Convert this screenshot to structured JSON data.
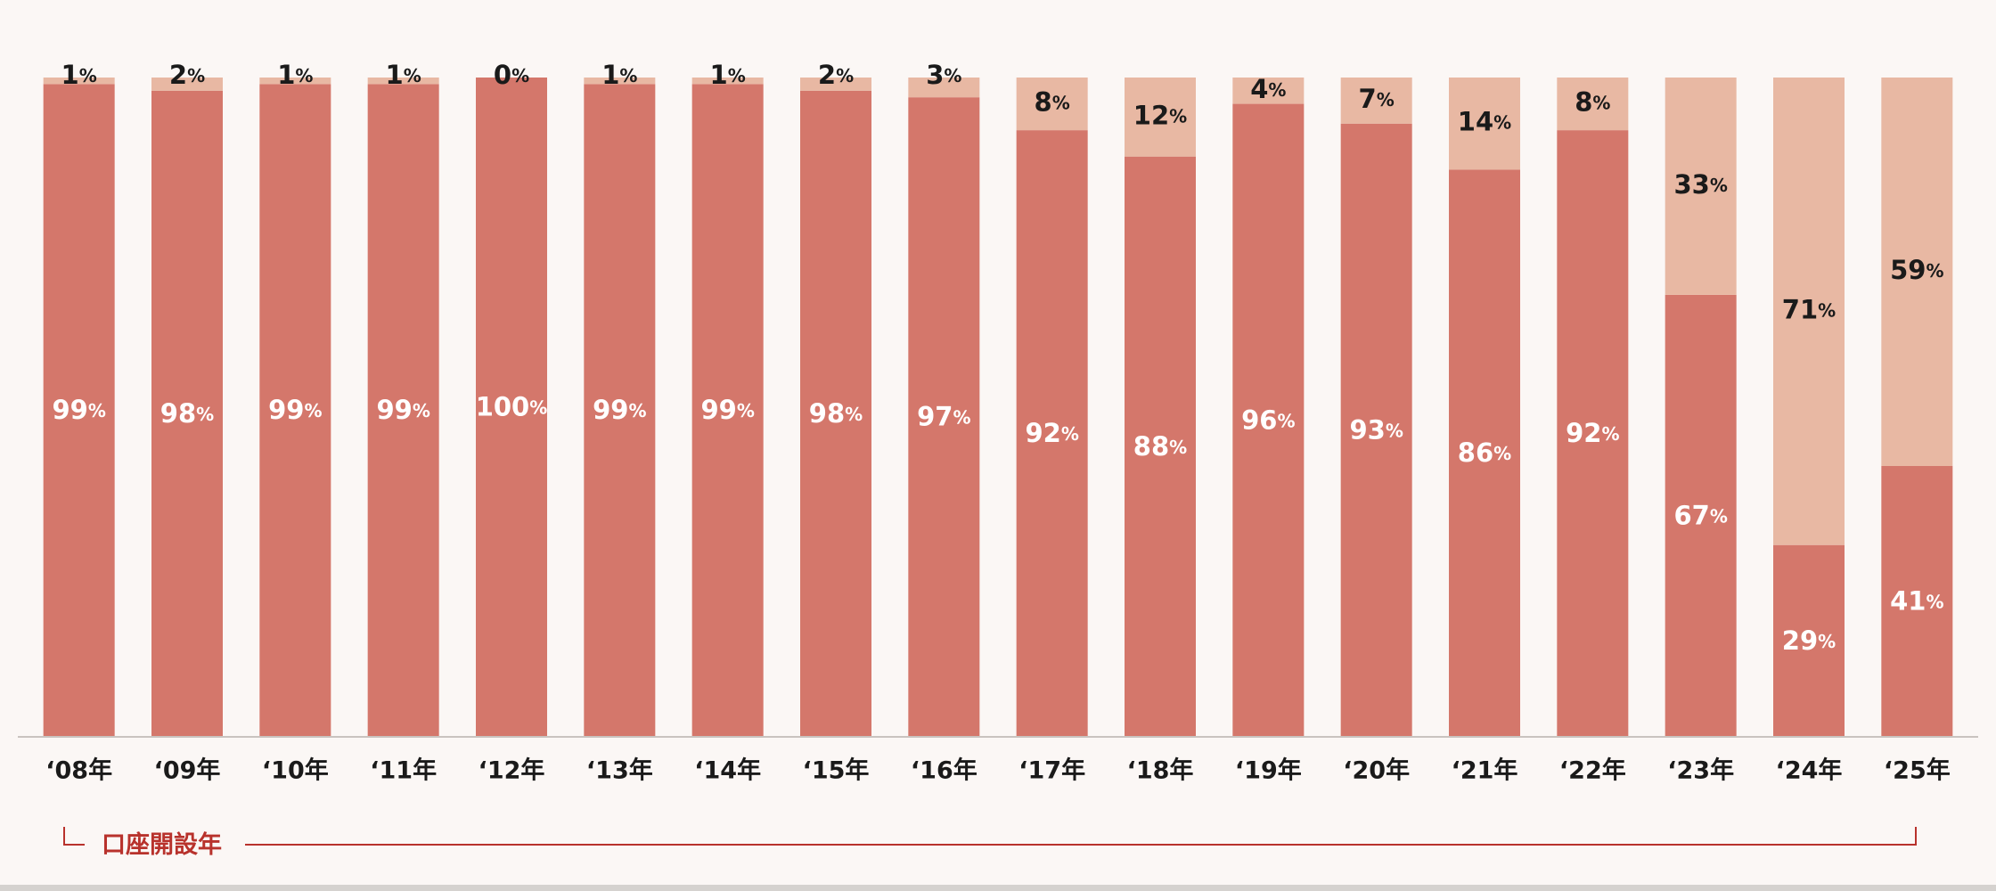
{
  "chart_data": {
    "type": "bar",
    "stacked": true,
    "percent_stacked": true,
    "categories": [
      "‘08年",
      "‘09年",
      "‘10年",
      "‘11年",
      "‘12年",
      "‘13年",
      "‘14年",
      "‘15年",
      "‘16年",
      "‘17年",
      "‘18年",
      "‘19年",
      "‘20年",
      "‘21年",
      "‘22年",
      "‘23年",
      "‘24年",
      "‘25年"
    ],
    "series": [
      {
        "values": [
          99,
          98,
          99,
          99,
          100,
          99,
          99,
          98,
          97,
          92,
          88,
          96,
          93,
          86,
          92,
          67,
          29,
          41
        ],
        "color": "#d4776b"
      },
      {
        "values": [
          1,
          2,
          1,
          1,
          0,
          1,
          1,
          2,
          3,
          8,
          12,
          4,
          7,
          14,
          8,
          33,
          71,
          59
        ],
        "color": "#e8b8a3"
      }
    ],
    "value_suffix": "%",
    "ylim": [
      0,
      100
    ],
    "grid": false,
    "legend": "none",
    "xlabel": "口座開設年",
    "colors": {
      "background": "#fbf7f5",
      "axis": "#c9c3bf",
      "label_dark": "#1a1a1a",
      "label_light": "#ffffff",
      "bracket": "#b8322c"
    }
  }
}
